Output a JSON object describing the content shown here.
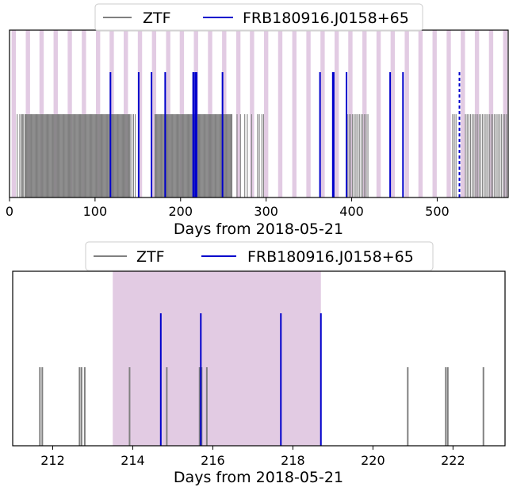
{
  "chart_data": [
    {
      "type": "line",
      "xlabel": "Days from 2018-05-21",
      "ylabel": "",
      "xlim": [
        0,
        583
      ],
      "xticks": [
        0,
        100,
        200,
        300,
        400,
        500
      ],
      "legend": {
        "placement": "top-center"
      },
      "colors": {
        "ZTF": "#808080",
        "FRB": "#0000cc",
        "window": "#e2cbe3"
      },
      "series": [
        {
          "name": "ZTF",
          "style": "solid",
          "x": [
            9,
            12,
            14,
            15,
            16,
            18,
            19,
            20,
            21,
            22,
            23,
            24,
            25,
            26,
            27,
            28,
            29,
            30,
            31,
            32,
            33,
            34,
            35,
            36,
            37,
            38,
            39,
            40,
            41,
            42,
            43,
            44,
            45,
            46,
            47,
            48,
            49,
            50,
            51,
            52,
            53,
            54,
            55,
            56,
            57,
            58,
            59,
            60,
            61,
            62,
            63,
            64,
            65,
            66,
            67,
            68,
            69,
            70,
            71,
            72,
            73,
            74,
            75,
            76,
            77,
            78,
            79,
            80,
            81,
            82,
            83,
            84,
            85,
            86,
            87,
            88,
            89,
            90,
            91,
            92,
            93,
            94,
            95,
            96,
            97,
            98,
            99,
            100,
            101,
            102,
            103,
            104,
            105,
            106,
            107,
            108,
            109,
            110,
            111,
            112,
            113,
            114,
            115,
            116,
            117,
            118,
            119,
            120,
            121,
            122,
            123,
            124,
            125,
            126,
            127,
            128,
            129,
            130,
            131,
            132,
            133,
            134,
            135,
            136,
            137,
            138,
            139,
            140,
            141,
            143,
            145,
            147,
            170,
            171,
            172,
            173,
            174,
            175,
            176,
            177,
            178,
            179,
            180,
            181,
            182,
            183,
            184,
            185,
            186,
            187,
            188,
            189,
            190,
            191,
            192,
            193,
            194,
            195,
            196,
            197,
            198,
            199,
            200,
            201,
            202,
            203,
            204,
            205,
            206,
            207,
            208,
            209,
            210,
            211,
            212,
            213,
            214,
            215,
            216,
            217,
            218,
            219,
            220,
            221,
            222,
            223,
            224,
            225,
            226,
            227,
            228,
            229,
            230,
            231,
            232,
            233,
            234,
            235,
            236,
            237,
            238,
            239,
            240,
            241,
            242,
            243,
            244,
            245,
            246,
            247,
            248,
            249,
            250,
            251,
            252,
            253,
            254,
            255,
            256,
            257,
            258,
            259,
            260,
            266,
            270,
            275,
            278,
            283,
            290,
            292,
            295,
            297,
            395,
            397,
            399,
            401,
            403,
            405,
            407,
            409,
            411,
            413,
            415,
            417,
            419,
            518,
            520,
            522,
            533,
            535,
            537,
            539,
            541,
            543,
            545,
            547,
            549,
            551,
            553,
            555,
            557,
            559,
            561,
            563,
            565,
            567,
            569,
            571,
            573,
            575,
            577,
            579,
            581
          ]
        },
        {
          "name": "FRB180916.J0158+65",
          "style": "solid",
          "x": [
            118,
            151,
            166,
            182,
            214.7,
            215.7,
            217.7,
            218.7,
            249,
            363,
            378,
            379,
            394,
            445,
            460
          ]
        },
        {
          "name": "",
          "style": "dashed",
          "x": [
            526
          ]
        }
      ],
      "activity_windows": [
        [
          2.5,
          7.5
        ],
        [
          19,
          24
        ],
        [
          35,
          40
        ],
        [
          51.5,
          56.5
        ],
        [
          68,
          73
        ],
        [
          84.5,
          89.5
        ],
        [
          101,
          106
        ],
        [
          117,
          122
        ],
        [
          133.5,
          138.5
        ],
        [
          150,
          155
        ],
        [
          166.5,
          171.5
        ],
        [
          183,
          188
        ],
        [
          199,
          204
        ],
        [
          215.5,
          220.5
        ],
        [
          232,
          237
        ],
        [
          248.5,
          253.5
        ],
        [
          265,
          270
        ],
        [
          281,
          286
        ],
        [
          297.5,
          302.5
        ],
        [
          314,
          319
        ],
        [
          330.5,
          335.5
        ],
        [
          347,
          352
        ],
        [
          363.5,
          368.5
        ],
        [
          380,
          385
        ],
        [
          396,
          401
        ],
        [
          412.5,
          417.5
        ],
        [
          429,
          434
        ],
        [
          445.5,
          450.5
        ],
        [
          462,
          467
        ],
        [
          478,
          483
        ],
        [
          494.5,
          499.5
        ],
        [
          511,
          516
        ],
        [
          527.5,
          532.5
        ],
        [
          544,
          549
        ],
        [
          560.5,
          565.5
        ],
        [
          577,
          582
        ]
      ]
    },
    {
      "type": "line",
      "xlabel": "Days from 2018-05-21",
      "ylabel": "",
      "xlim": [
        211,
        223.3
      ],
      "xticks": [
        212,
        214,
        216,
        218,
        220,
        222
      ],
      "legend": {
        "placement": "top-center"
      },
      "colors": {
        "ZTF": "#808080",
        "FRB": "#0000cc",
        "window": "#e2cbe3"
      },
      "series": [
        {
          "name": "ZTF",
          "style": "solid",
          "x": [
            211.68,
            211.74,
            212.67,
            212.72,
            212.8,
            213.92,
            214.85,
            215.67,
            215.72,
            215.85,
            220.87,
            221.82,
            221.87,
            222.76
          ]
        },
        {
          "name": "FRB180916.J0158+65",
          "style": "solid",
          "x": [
            214.7,
            215.7,
            217.7,
            218.7
          ]
        }
      ],
      "activity_windows": [
        [
          213.5,
          218.7
        ]
      ]
    }
  ]
}
